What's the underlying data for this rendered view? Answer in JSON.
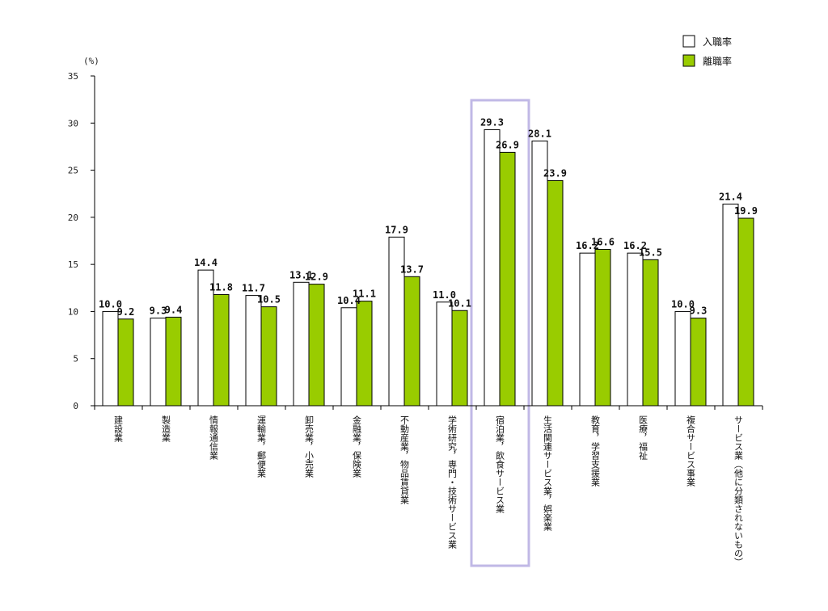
{
  "chart_data": {
    "type": "bar",
    "unit_label": "(%)",
    "ylim": [
      0,
      35
    ],
    "yticks": [
      0,
      5,
      10,
      15,
      20,
      25,
      30,
      35
    ],
    "grid": false,
    "legend_position": "top-right",
    "categories": [
      "建設業",
      "製造業",
      "情報通信業",
      "運輸業，郵便業",
      "卸売業，小売業",
      "金融業，保険業",
      "不動産業，物品賃貸業",
      "学術研究，専門・技術サービス業",
      "宿泊業，飲食サービス業",
      "生活関連サービス業，娯楽業",
      "教育，学習支援業",
      "医療，福祉",
      "複合サービス事業",
      "サービス業（他に分類されないもの）"
    ],
    "series": [
      {
        "name": "入職率",
        "color": "#ffffff",
        "values": [
          10.0,
          9.3,
          14.4,
          11.7,
          13.1,
          10.4,
          17.9,
          11.0,
          29.3,
          28.1,
          16.2,
          16.2,
          10.0,
          21.4
        ]
      },
      {
        "name": "離職率",
        "color": "#99cc00",
        "values": [
          9.2,
          9.4,
          11.8,
          10.5,
          12.9,
          11.1,
          13.7,
          10.1,
          26.9,
          23.9,
          16.6,
          15.5,
          9.3,
          19.9
        ]
      }
    ],
    "highlighted_category": "宿泊業，飲食サービス業",
    "highlight_color": "#c0b8e6"
  }
}
